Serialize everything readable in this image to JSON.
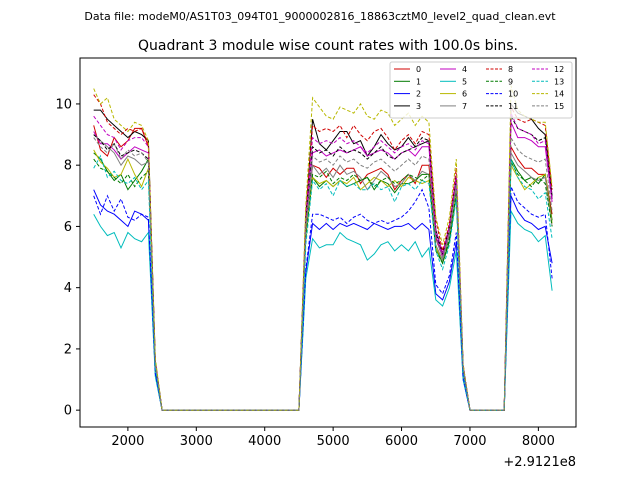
{
  "header": {
    "data_file": "Data file: modeM0/AS1T03_094T01_9000002816_18863cztM0_level2_quad_clean.evt"
  },
  "chart_data": {
    "type": "line",
    "title": "Quadrant 3 module wise count rates with 100.0s bins.",
    "xlabel": "",
    "ylabel": "",
    "x_offset_text": "+2.9121e8",
    "xlim": [
      1300,
      8550
    ],
    "ylim": [
      -0.55,
      11.5
    ],
    "x_ticks": [
      2000,
      3000,
      4000,
      5000,
      6000,
      7000,
      8000
    ],
    "x_tick_labels": [
      "2000",
      "3000",
      "4000",
      "5000",
      "6000",
      "7000",
      "8000"
    ],
    "y_ticks": [
      0,
      2,
      4,
      6,
      8,
      10
    ],
    "y_tick_labels": [
      "0",
      "2",
      "4",
      "6",
      "8",
      "10"
    ],
    "legend_position": "top-right",
    "x": [
      1500,
      1600,
      1700,
      1800,
      1900,
      2000,
      2100,
      2200,
      2300,
      2400,
      2500,
      2600,
      2700,
      2800,
      2900,
      3000,
      3100,
      3200,
      3300,
      3400,
      3500,
      3600,
      3700,
      3800,
      3900,
      4000,
      4100,
      4200,
      4300,
      4400,
      4500,
      4600,
      4700,
      4800,
      4900,
      5000,
      5100,
      5200,
      5300,
      5400,
      5500,
      5600,
      5700,
      5800,
      5900,
      6000,
      6100,
      6200,
      6300,
      6400,
      6500,
      6600,
      6700,
      6800,
      6900,
      7000,
      7100,
      7200,
      7300,
      7400,
      7500,
      7600,
      7700,
      7800,
      7900,
      8000,
      8100,
      8200
    ],
    "series": [
      {
        "name": "0",
        "color": "#d00000",
        "dash": "solid",
        "values": [
          9.3,
          8.5,
          8.3,
          8.9,
          8.6,
          8.8,
          9.2,
          9.2,
          8.6,
          1.6,
          0,
          0,
          0,
          0,
          0,
          0,
          0,
          0,
          0,
          0,
          0,
          0,
          0,
          0,
          0,
          0,
          0,
          0,
          0,
          0,
          0,
          5.9,
          8.0,
          7.9,
          7.6,
          7.9,
          7.7,
          7.9,
          7.9,
          7.4,
          7.7,
          7.8,
          7.9,
          7.7,
          7.2,
          7.5,
          7.7,
          7.4,
          8.0,
          8.0,
          5.6,
          5.0,
          5.8,
          7.3,
          1.4,
          0,
          0,
          0,
          0,
          0,
          0,
          8.6,
          8.2,
          7.9,
          7.9,
          7.7,
          7.7,
          6.4
        ]
      },
      {
        "name": "1",
        "color": "#007a00",
        "dash": "solid",
        "values": [
          8.4,
          8.2,
          7.8,
          7.5,
          7.7,
          7.2,
          7.5,
          7.8,
          8.2,
          1.5,
          0,
          0,
          0,
          0,
          0,
          0,
          0,
          0,
          0,
          0,
          0,
          0,
          0,
          0,
          0,
          0,
          0,
          0,
          0,
          0,
          0,
          5.7,
          7.6,
          7.3,
          7.5,
          7.3,
          7.5,
          7.3,
          7.4,
          7.5,
          7.6,
          7.2,
          7.5,
          7.4,
          7.1,
          7.4,
          7.4,
          7.5,
          7.7,
          7.7,
          5.3,
          4.8,
          5.5,
          7.0,
          1.3,
          0,
          0,
          0,
          0,
          0,
          0,
          8.2,
          7.8,
          7.5,
          7.6,
          7.4,
          7.7,
          6.2
        ]
      },
      {
        "name": "2",
        "color": "#0000ff",
        "dash": "solid",
        "values": [
          7.2,
          6.7,
          6.5,
          6.4,
          6.2,
          6.0,
          6.5,
          6.4,
          6.2,
          1.2,
          0,
          0,
          0,
          0,
          0,
          0,
          0,
          0,
          0,
          0,
          0,
          0,
          0,
          0,
          0,
          0,
          0,
          0,
          0,
          0,
          0,
          4.5,
          6.1,
          5.9,
          6.1,
          5.9,
          6.1,
          6.0,
          6.1,
          6.0,
          5.9,
          6.1,
          6.0,
          5.9,
          6.0,
          6.0,
          6.1,
          5.9,
          6.1,
          5.9,
          3.8,
          3.6,
          4.2,
          5.5,
          1.0,
          0,
          0,
          0,
          0,
          0,
          0,
          7.0,
          6.5,
          6.2,
          6.1,
          5.9,
          6.0,
          4.8
        ]
      },
      {
        "name": "3",
        "color": "#000000",
        "dash": "solid",
        "values": [
          9.8,
          9.8,
          9.5,
          9.3,
          9.1,
          8.9,
          9.1,
          9.0,
          8.8,
          1.6,
          0,
          0,
          0,
          0,
          0,
          0,
          0,
          0,
          0,
          0,
          0,
          0,
          0,
          0,
          0,
          0,
          0,
          0,
          0,
          0,
          0,
          6.3,
          9.5,
          8.7,
          8.5,
          8.8,
          9.1,
          9.1,
          8.7,
          8.8,
          8.3,
          8.6,
          9.0,
          8.7,
          8.5,
          8.6,
          8.9,
          8.6,
          8.7,
          8.8,
          5.9,
          5.1,
          6.0,
          7.6,
          1.4,
          0,
          0,
          0,
          0,
          0,
          0,
          10.0,
          9.7,
          9.6,
          9.5,
          9.2,
          9.0,
          7.0
        ]
      },
      {
        "name": "4",
        "color": "#c000c0",
        "dash": "solid",
        "values": [
          9.1,
          8.7,
          8.7,
          8.5,
          8.2,
          8.4,
          8.6,
          8.5,
          8.4,
          1.5,
          0,
          0,
          0,
          0,
          0,
          0,
          0,
          0,
          0,
          0,
          0,
          0,
          0,
          0,
          0,
          0,
          0,
          0,
          0,
          0,
          0,
          6.1,
          8.4,
          8.5,
          8.3,
          8.4,
          8.5,
          8.4,
          8.5,
          8.6,
          8.3,
          8.4,
          8.5,
          8.4,
          8.2,
          8.4,
          8.5,
          8.3,
          8.6,
          8.6,
          5.7,
          5.0,
          5.8,
          7.5,
          1.4,
          0,
          0,
          0,
          0,
          0,
          0,
          9.4,
          8.9,
          8.9,
          8.8,
          8.6,
          8.6,
          6.8
        ]
      },
      {
        "name": "5",
        "color": "#00bcbc",
        "dash": "solid",
        "values": [
          6.4,
          6.0,
          5.7,
          5.8,
          5.3,
          5.8,
          5.6,
          5.5,
          5.8,
          1.1,
          0,
          0,
          0,
          0,
          0,
          0,
          0,
          0,
          0,
          0,
          0,
          0,
          0,
          0,
          0,
          0,
          0,
          0,
          0,
          0,
          0,
          4.3,
          5.6,
          5.3,
          5.4,
          5.4,
          5.8,
          5.6,
          5.5,
          5.4,
          4.9,
          5.1,
          5.4,
          5.5,
          5.2,
          5.4,
          5.2,
          5.5,
          5.0,
          5.3,
          3.6,
          3.4,
          4.0,
          5.2,
          1.0,
          0,
          0,
          0,
          0,
          0,
          0,
          6.5,
          6.1,
          5.9,
          5.8,
          5.5,
          5.7,
          3.9
        ]
      },
      {
        "name": "6",
        "color": "#b8b800",
        "dash": "solid",
        "values": [
          8.5,
          8.1,
          7.9,
          7.6,
          7.7,
          8.2,
          7.7,
          7.3,
          7.9,
          1.5,
          0,
          0,
          0,
          0,
          0,
          0,
          0,
          0,
          0,
          0,
          0,
          0,
          0,
          0,
          0,
          0,
          0,
          0,
          0,
          0,
          0,
          5.8,
          7.6,
          7.4,
          7.5,
          7.3,
          7.5,
          7.4,
          7.6,
          7.2,
          7.4,
          7.6,
          7.5,
          7.3,
          7.5,
          7.3,
          7.6,
          7.5,
          7.4,
          7.5,
          5.3,
          4.9,
          5.7,
          7.1,
          1.3,
          0,
          0,
          0,
          0,
          0,
          0,
          8.0,
          7.6,
          7.2,
          7.4,
          7.6,
          7.7,
          6.1
        ]
      },
      {
        "name": "7",
        "color": "#808080",
        "dash": "solid",
        "values": [
          9.0,
          8.8,
          8.6,
          8.4,
          8.0,
          8.3,
          8.2,
          8.0,
          8.1,
          1.5,
          0,
          0,
          0,
          0,
          0,
          0,
          0,
          0,
          0,
          0,
          0,
          0,
          0,
          0,
          0,
          0,
          0,
          0,
          0,
          0,
          0,
          5.9,
          8.0,
          7.7,
          7.9,
          7.6,
          8.0,
          7.7,
          7.8,
          7.6,
          7.2,
          7.5,
          7.8,
          7.6,
          7.3,
          7.4,
          7.7,
          7.5,
          7.8,
          7.7,
          5.4,
          4.9,
          5.7,
          7.3,
          1.4,
          0,
          0,
          0,
          0,
          0,
          0,
          8.4,
          8.0,
          7.8,
          7.6,
          7.5,
          7.6,
          6.0
        ]
      },
      {
        "name": "8",
        "color": "#d00000",
        "dash": "dashed",
        "values": [
          10.3,
          10.0,
          9.4,
          9.2,
          9.0,
          9.2,
          9.1,
          9.2,
          8.7,
          1.6,
          0,
          0,
          0,
          0,
          0,
          0,
          0,
          0,
          0,
          0,
          0,
          0,
          0,
          0,
          0,
          0,
          0,
          0,
          0,
          0,
          0,
          6.5,
          9.3,
          9.1,
          9.2,
          9.1,
          9.3,
          8.9,
          9.3,
          9.0,
          8.8,
          9.1,
          9.2,
          8.9,
          8.5,
          8.8,
          9.0,
          8.7,
          9.1,
          9.0,
          6.2,
          5.2,
          6.1,
          7.9,
          1.5,
          0,
          0,
          0,
          0,
          0,
          0,
          9.9,
          9.5,
          9.4,
          9.5,
          9.4,
          9.3,
          7.2
        ]
      },
      {
        "name": "9",
        "color": "#007a00",
        "dash": "dashed",
        "values": [
          8.2,
          7.9,
          7.8,
          7.6,
          7.4,
          7.7,
          7.3,
          7.6,
          7.8,
          1.4,
          0,
          0,
          0,
          0,
          0,
          0,
          0,
          0,
          0,
          0,
          0,
          0,
          0,
          0,
          0,
          0,
          0,
          0,
          0,
          0,
          0,
          5.6,
          7.7,
          7.6,
          7.8,
          7.4,
          7.6,
          7.5,
          7.7,
          7.5,
          7.6,
          7.3,
          7.5,
          7.6,
          7.4,
          7.5,
          7.7,
          7.6,
          7.5,
          7.7,
          5.2,
          4.8,
          5.6,
          7.1,
          1.3,
          0,
          0,
          0,
          0,
          0,
          0,
          8.1,
          7.7,
          7.5,
          7.3,
          7.6,
          7.4,
          6.0
        ]
      },
      {
        "name": "10",
        "color": "#0000ff",
        "dash": "dashed",
        "values": [
          7.0,
          6.4,
          7.0,
          6.5,
          6.9,
          6.3,
          6.2,
          6.4,
          6.3,
          1.2,
          0,
          0,
          0,
          0,
          0,
          0,
          0,
          0,
          0,
          0,
          0,
          0,
          0,
          0,
          0,
          0,
          0,
          0,
          0,
          0,
          0,
          4.6,
          6.4,
          6.4,
          6.3,
          6.2,
          6.3,
          6.1,
          6.3,
          6.4,
          6.2,
          6.1,
          6.2,
          6.1,
          6.2,
          6.3,
          6.5,
          6.8,
          7.2,
          6.6,
          4.1,
          3.8,
          4.4,
          5.8,
          1.1,
          0,
          0,
          0,
          0,
          0,
          0,
          7.3,
          6.8,
          6.6,
          6.4,
          6.3,
          6.4,
          4.3
        ]
      },
      {
        "name": "11",
        "color": "#000000",
        "dash": "dashed",
        "values": [
          9.0,
          8.8,
          8.5,
          8.7,
          8.3,
          8.4,
          8.5,
          8.4,
          8.2,
          1.5,
          0,
          0,
          0,
          0,
          0,
          0,
          0,
          0,
          0,
          0,
          0,
          0,
          0,
          0,
          0,
          0,
          0,
          0,
          0,
          0,
          0,
          6.2,
          8.6,
          8.4,
          8.5,
          8.3,
          8.6,
          8.4,
          8.5,
          8.4,
          8.2,
          8.4,
          8.6,
          8.3,
          8.2,
          8.4,
          8.5,
          8.6,
          8.9,
          8.8,
          5.8,
          5.1,
          5.9,
          7.6,
          1.4,
          0,
          0,
          0,
          0,
          0,
          0,
          9.6,
          9.2,
          9.1,
          9.0,
          8.8,
          8.9,
          6.9
        ]
      },
      {
        "name": "12",
        "color": "#c000c0",
        "dash": "dashed",
        "values": [
          9.6,
          9.3,
          9.0,
          8.9,
          8.5,
          8.8,
          8.9,
          8.9,
          8.6,
          1.6,
          0,
          0,
          0,
          0,
          0,
          0,
          0,
          0,
          0,
          0,
          0,
          0,
          0,
          0,
          0,
          0,
          0,
          0,
          0,
          0,
          0,
          6.3,
          8.9,
          8.7,
          8.8,
          8.7,
          8.9,
          8.7,
          8.8,
          8.6,
          8.4,
          8.6,
          8.8,
          8.6,
          8.4,
          8.6,
          8.7,
          8.5,
          8.8,
          8.7,
          5.9,
          5.1,
          6.0,
          7.7,
          1.4,
          0,
          0,
          0,
          0,
          0,
          0,
          9.7,
          9.2,
          9.1,
          9.0,
          8.7,
          8.8,
          6.9
        ]
      },
      {
        "name": "13",
        "color": "#00bcbc",
        "dash": "dashed",
        "values": [
          7.9,
          8.3,
          7.6,
          7.8,
          7.5,
          7.4,
          7.6,
          7.2,
          7.5,
          1.4,
          0,
          0,
          0,
          0,
          0,
          0,
          0,
          0,
          0,
          0,
          0,
          0,
          0,
          0,
          0,
          0,
          0,
          0,
          0,
          0,
          0,
          5.4,
          7.5,
          7.2,
          7.4,
          7.0,
          7.5,
          7.3,
          7.4,
          7.2,
          7.2,
          7.4,
          7.2,
          7.3,
          6.8,
          7.3,
          7.4,
          7.2,
          7.5,
          7.4,
          5.2,
          4.6,
          5.4,
          6.9,
          1.3,
          0,
          0,
          0,
          0,
          0,
          0,
          8.2,
          7.6,
          7.3,
          7.2,
          6.9,
          7.1,
          5.6
        ]
      },
      {
        "name": "14",
        "color": "#b8b800",
        "dash": "dashed",
        "values": [
          10.5,
          10.0,
          10.2,
          9.5,
          9.3,
          9.1,
          9.4,
          9.3,
          8.8,
          1.7,
          0,
          0,
          0,
          0,
          0,
          0,
          0,
          0,
          0,
          0,
          0,
          0,
          0,
          0,
          0,
          0,
          0,
          0,
          0,
          0,
          0,
          6.7,
          10.2,
          9.9,
          9.6,
          9.5,
          9.9,
          9.8,
          9.7,
          10.0,
          9.6,
          9.5,
          9.8,
          9.7,
          9.3,
          9.5,
          9.7,
          9.3,
          9.6,
          9.4,
          6.3,
          5.4,
          6.3,
          8.2,
          1.5,
          0,
          0,
          0,
          0,
          0,
          0,
          10.6,
          9.8,
          9.6,
          9.5,
          9.4,
          9.4,
          7.3
        ]
      },
      {
        "name": "15",
        "color": "#808080",
        "dash": "dashed",
        "values": [
          8.9,
          8.6,
          8.4,
          8.7,
          8.2,
          8.5,
          8.3,
          8.4,
          8.1,
          1.5,
          0,
          0,
          0,
          0,
          0,
          0,
          0,
          0,
          0,
          0,
          0,
          0,
          0,
          0,
          0,
          0,
          0,
          0,
          0,
          0,
          0,
          6.0,
          8.3,
          8.1,
          8.2,
          8.0,
          8.3,
          8.1,
          8.2,
          8.0,
          7.9,
          8.1,
          8.2,
          8.0,
          7.8,
          8.0,
          8.2,
          8.0,
          8.3,
          8.2,
          5.6,
          5.0,
          5.8,
          7.4,
          1.4,
          0,
          0,
          0,
          0,
          0,
          0,
          8.9,
          8.5,
          8.3,
          8.2,
          8.1,
          8.2,
          6.5
        ]
      }
    ]
  }
}
